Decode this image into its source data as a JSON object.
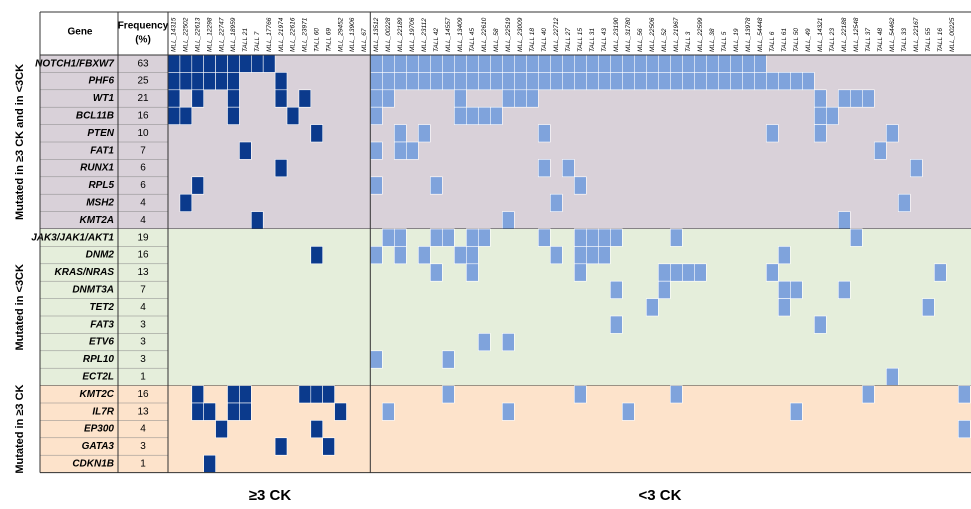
{
  "gene_header": "Gene",
  "frequency_header": [
    "Frequency",
    "(%)"
  ],
  "sample_groups": [
    {
      "label": "≥3 CK",
      "color": "#0b3a8c",
      "samples": [
        "MLL_14315",
        "MLL_22502",
        "MLL_22613",
        "MLL_12298",
        "MLL_22747",
        "MLL_18959",
        "TALL 21",
        "TALL 7",
        "MLL_17766",
        "MLL_21974",
        "MLL_22616",
        "MLL_23971",
        "TALL 60",
        "TALL 69",
        "MLL_29452",
        "MLL_13906",
        "MLL_67"
      ]
    },
    {
      "label": "<3 CK",
      "color": "#7fa3dc",
      "samples": [
        "MLL_13512",
        "MLL_00228",
        "MLL_22189",
        "MLL_19706",
        "MLL_23112",
        "TALL 42",
        "MLL_14557",
        "MLL_13409",
        "TALL 45",
        "MLL_22610",
        "MLL_58",
        "MLL_22519",
        "MLL_23009",
        "TALL 18",
        "TALL 40",
        "MLL_22712",
        "TALL 27",
        "TALL 15",
        "TALL 31",
        "TALL 43",
        "MLL_23190",
        "MLL_31780",
        "MLL_56",
        "MLL_22506",
        "MLL_52",
        "MLL_21967",
        "TALL 3",
        "MLL_22599",
        "MLL_38",
        "TALL 5",
        "MLL_19",
        "MLL_13978",
        "MLL_54448",
        "TALL 6",
        "TALL 61",
        "TALL 50",
        "MLL_49",
        "MLL_14321",
        "TALL 23",
        "MLL_22188",
        "MLL_12548",
        "TALL 37",
        "TALL 48",
        "MLL_54462",
        "TALL 33",
        "MLL_22167",
        "TALL 55",
        "TALL 16",
        "MLL_00225",
        null
      ]
    }
  ],
  "sections": [
    {
      "label": "Mutated in ≥3 CK and in <3CK",
      "color": "#d9d1d9",
      "genes": [
        {
          "gene": "NOTCH1/FBXW7",
          "frequency": 63,
          "mutated": [
            [
              0,
              1,
              2,
              3,
              4,
              5,
              6,
              7,
              8
            ],
            [
              0,
              1,
              2,
              3,
              4,
              5,
              6,
              7,
              8,
              9,
              10,
              11,
              12,
              13,
              14,
              15,
              16,
              17,
              18,
              19,
              20,
              21,
              22,
              23,
              24,
              25,
              26,
              27,
              28,
              29,
              30,
              31,
              32
            ]
          ]
        },
        {
          "gene": "PHF6",
          "frequency": 25,
          "mutated": [
            [
              0,
              1,
              2,
              3,
              4,
              5,
              9
            ],
            [
              0,
              1,
              2,
              3,
              4,
              5,
              6,
              7,
              8,
              9,
              10,
              11,
              12,
              13,
              14,
              15,
              16,
              17,
              18,
              19,
              20,
              21,
              22,
              23,
              24,
              25,
              26,
              27,
              28,
              29,
              30,
              31,
              32,
              33,
              34,
              35,
              36
            ]
          ]
        },
        {
          "gene": "WT1",
          "frequency": 21,
          "mutated": [
            [
              0,
              2,
              5,
              9,
              11
            ],
            [
              0,
              1,
              7,
              11,
              12,
              13,
              37,
              39,
              40,
              41
            ]
          ]
        },
        {
          "gene": "BCL11B",
          "frequency": 16,
          "mutated": [
            [
              0,
              1,
              5,
              10
            ],
            [
              0,
              7,
              8,
              9,
              10,
              37,
              38
            ]
          ]
        },
        {
          "gene": "PTEN",
          "frequency": 10,
          "mutated": [
            [
              12
            ],
            [
              2,
              4,
              14,
              33,
              37,
              43
            ]
          ]
        },
        {
          "gene": "FAT1",
          "frequency": 7,
          "mutated": [
            [
              6
            ],
            [
              0,
              2,
              3,
              42
            ]
          ]
        },
        {
          "gene": "RUNX1",
          "frequency": 6,
          "mutated": [
            [
              9
            ],
            [
              14,
              16,
              45
            ]
          ]
        },
        {
          "gene": "RPL5",
          "frequency": 6,
          "mutated": [
            [
              2
            ],
            [
              0,
              5,
              17
            ]
          ]
        },
        {
          "gene": "MSH2",
          "frequency": 4,
          "mutated": [
            [
              1
            ],
            [
              15,
              44
            ]
          ]
        },
        {
          "gene": "KMT2A",
          "frequency": 4,
          "mutated": [
            [
              7
            ],
            [
              11,
              39
            ]
          ]
        }
      ]
    },
    {
      "label": "Mutated in <3CK",
      "color": "#e5eedb",
      "genes": [
        {
          "gene": "JAK3/JAK1/AKT1",
          "frequency": 19,
          "mutated": [
            [],
            [
              1,
              2,
              5,
              6,
              8,
              9,
              14,
              17,
              18,
              19,
              20,
              25,
              40
            ]
          ]
        },
        {
          "gene": "DNM2",
          "frequency": 16,
          "mutated": [
            [
              12
            ],
            [
              0,
              2,
              4,
              7,
              8,
              15,
              17,
              18,
              19,
              34
            ]
          ]
        },
        {
          "gene": "KRAS/NRAS",
          "frequency": 13,
          "mutated": [
            [],
            [
              5,
              8,
              17,
              24,
              25,
              26,
              27,
              33,
              47
            ]
          ]
        },
        {
          "gene": "DNMT3A",
          "frequency": 7,
          "mutated": [
            [],
            [
              20,
              24,
              34,
              35,
              39
            ]
          ]
        },
        {
          "gene": "TET2",
          "frequency": 4,
          "mutated": [
            [],
            [
              23,
              34,
              46
            ]
          ]
        },
        {
          "gene": "FAT3",
          "frequency": 3,
          "mutated": [
            [],
            [
              20,
              37
            ]
          ]
        },
        {
          "gene": "ETV6",
          "frequency": 3,
          "mutated": [
            [],
            [
              9,
              11
            ]
          ]
        },
        {
          "gene": "RPL10",
          "frequency": 3,
          "mutated": [
            [],
            [
              0,
              6
            ]
          ]
        },
        {
          "gene": "ECT2L",
          "frequency": 1,
          "mutated": [
            [],
            [
              43
            ]
          ]
        }
      ]
    },
    {
      "label": "Mutated in ≥3 CK",
      "color": "#fde3cb",
      "genes": [
        {
          "gene": "KMT2C",
          "frequency": 16,
          "mutated": [
            [
              2,
              5,
              6,
              11,
              12,
              13
            ],
            [
              6,
              17,
              25,
              41,
              49
            ]
          ]
        },
        {
          "gene": "IL7R",
          "frequency": 13,
          "mutated": [
            [
              2,
              3,
              5,
              6,
              14
            ],
            [
              1,
              11,
              21,
              35
            ]
          ]
        },
        {
          "gene": "EP300",
          "frequency": 4,
          "mutated": [
            [
              4,
              12
            ],
            [
              49
            ]
          ]
        },
        {
          "gene": "GATA3",
          "frequency": 3,
          "mutated": [
            [
              9,
              13
            ],
            []
          ]
        },
        {
          "gene": "CDKN1B",
          "frequency": 1,
          "mutated": [
            [
              3
            ],
            []
          ]
        }
      ]
    }
  ]
}
